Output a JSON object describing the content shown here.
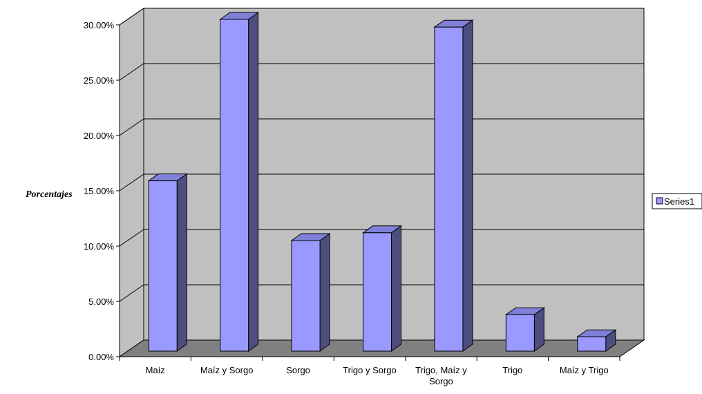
{
  "chart_data": {
    "type": "bar",
    "title": "",
    "xlabel": "",
    "ylabel": "Porcentajes",
    "categories": [
      "Maíz",
      "Maíz y Sorgo",
      "Sorgo",
      "Trigo y Sorgo",
      "Trigo, Maíz y Sorgo",
      "Trigo",
      "Maíz y Trigo"
    ],
    "series": [
      {
        "name": "Series1",
        "values": [
          15.4,
          30.0,
          10.0,
          10.7,
          29.3,
          3.3,
          1.3
        ]
      }
    ],
    "ylim": [
      0,
      30
    ],
    "yticks": [
      "0.00%",
      "5.00%",
      "10.00%",
      "15.00%",
      "20.00%",
      "25.00%",
      "30.00%"
    ],
    "grid": true,
    "three_d": true,
    "legend": "right",
    "colors": {
      "bar_front": "#9999ff",
      "bar_side": "#4d4d80",
      "bar_top": "#8080d8",
      "wall": "#c0c0c0",
      "floor": "#808080",
      "outline": "#000000"
    }
  }
}
